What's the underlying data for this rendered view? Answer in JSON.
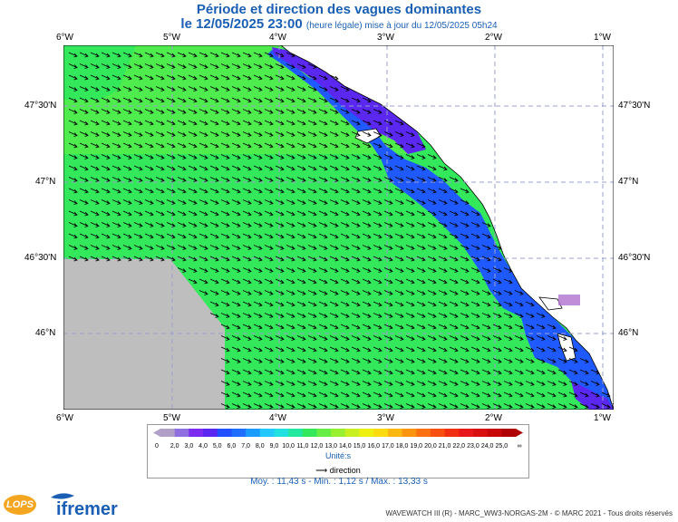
{
  "header": {
    "title": "Période et direction des vagues dominantes",
    "date_line": "le 12/05/2025 23:00",
    "update_note": "(heure légale) mise à jour du 12/05/2025 05h24"
  },
  "map": {
    "lon_labels_top": [
      "6°W",
      "5°W",
      "4°W",
      "3°W",
      "2°W",
      "1°W"
    ],
    "lon_labels_bottom": [
      "6°W",
      "5°W",
      "4°W",
      "3°W",
      "2°W",
      "1°W"
    ],
    "lat_labels": [
      "47°30'N",
      "47°N",
      "46°30'N",
      "46°N"
    ],
    "lon_range": [
      -6.0,
      -0.98
    ],
    "lat_range": [
      45.55,
      47.95
    ],
    "colors": {
      "sea_green": "#33e85a",
      "sea_light_green": "#66ee44",
      "sea_blue": "#1e5aff",
      "sea_violet": "#5a28f0",
      "land": "#ffffff",
      "no_data": "#bebebe",
      "grid": "#9aa0cc",
      "arrow": "#000000"
    },
    "wave_direction": "towards south-east"
  },
  "legend": {
    "left_end": "0",
    "right_end": "∞",
    "ticks": [
      "2,0",
      "3,0",
      "4,0",
      "5,0",
      "6,0",
      "7,0",
      "8,0",
      "9,0",
      "10,0",
      "11,0",
      "12,0",
      "13,0",
      "14,0",
      "15,0",
      "16,0",
      "17,0",
      "18,0",
      "19,0",
      "20,0",
      "21,0",
      "22,0",
      "23,0",
      "24,0",
      "25,0"
    ],
    "colors": [
      "#b0a0c8",
      "#9070e0",
      "#7b2cf0",
      "#5a28f0",
      "#2050ff",
      "#1e6eff",
      "#1a9cff",
      "#22c8ff",
      "#20e0e0",
      "#22e8a0",
      "#33e85a",
      "#66ee44",
      "#99f030",
      "#c8f020",
      "#eef010",
      "#fcdc10",
      "#fcb810",
      "#fc9410",
      "#fc7010",
      "#f85010",
      "#f03010",
      "#e81818",
      "#d81010",
      "#c80808",
      "#b00000"
    ],
    "units": "Unité:s",
    "direction_label": "direction"
  },
  "stats": "Moy. : 11,43 s   -   Min. : 1,12 s / Max. : 13,33 s",
  "footer": "WAVEWATCH III (R) - MARC_WW3-NORGAS-2M - © MARC 2021 - Tous droits réservés",
  "logos": {
    "lops": "LOPS",
    "ifremer": "ifremer"
  }
}
